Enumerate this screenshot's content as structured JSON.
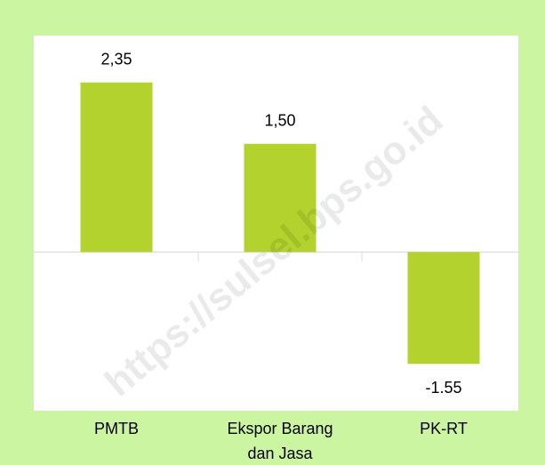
{
  "chart_data": {
    "type": "bar",
    "categories": [
      "PMTB",
      "Ekspor Barang dan Jasa",
      "PK-RT"
    ],
    "values": [
      2.35,
      1.5,
      -1.55
    ],
    "value_labels": [
      "2,35",
      "1,50",
      "-1.55"
    ],
    "color": "#b3d22d",
    "ylim": [
      -2.2,
      3
    ],
    "grid": false,
    "watermark": "https://sulsel.bps.go.id"
  }
}
